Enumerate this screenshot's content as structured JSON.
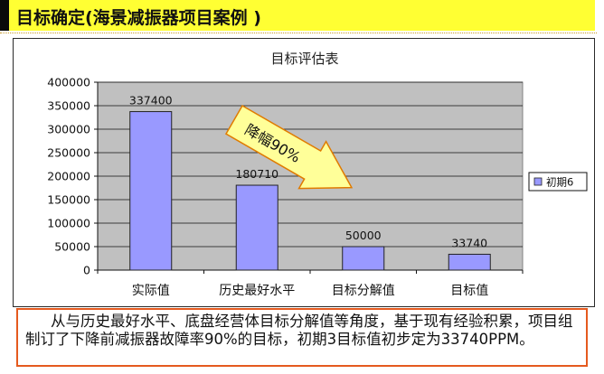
{
  "header": {
    "title": "目标确定(海景减振器项目案例 )"
  },
  "chart_data": {
    "type": "bar",
    "title": "目标评估表",
    "categories": [
      "实际值",
      "历史最好水平",
      "目标分解值",
      "目标值"
    ],
    "series": [
      {
        "name": "初期6",
        "values": [
          337400,
          180710,
          50000,
          33740
        ]
      }
    ],
    "ylim": [
      0,
      400000
    ],
    "yticks": [
      0,
      50000,
      100000,
      150000,
      200000,
      250000,
      300000,
      350000,
      400000
    ],
    "data_labels": [
      "337400",
      "180710",
      "50000",
      "33740"
    ],
    "grid": true,
    "legend_position": "right",
    "annotation": "降幅90%",
    "colors": {
      "bar": "#9999ff",
      "plot_bg": "#c0c0c0",
      "arrow": "#ffff99",
      "arrow_stroke": "#e07b00"
    }
  },
  "note": {
    "text": "从与历史最好水平、底盘经营体目标分解值等角度，基于现有经验积累，项目组制订了下降前减振器故障率90%的目标，初期3目标值初步定为33740PPM。"
  }
}
